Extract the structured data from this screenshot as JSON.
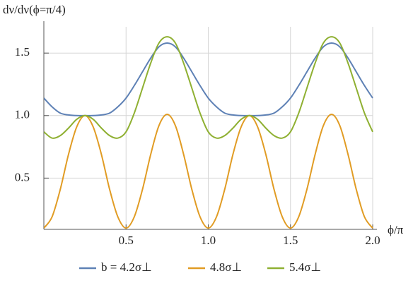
{
  "chart_data": {
    "type": "line",
    "y_label": "dν/dν(ϕ=π/4)",
    "x_label": "ϕ/π",
    "x": [
      0,
      0.05,
      0.1,
      0.15,
      0.2,
      0.25,
      0.3,
      0.35,
      0.4,
      0.45,
      0.5,
      0.55,
      0.6,
      0.65,
      0.7,
      0.75,
      0.8,
      0.85,
      0.9,
      0.95,
      1,
      1.05,
      1.1,
      1.15,
      1.2,
      1.25,
      1.3,
      1.35,
      1.4,
      1.45,
      1.5,
      1.55,
      1.6,
      1.65,
      1.7,
      1.75,
      1.8,
      1.85,
      1.9,
      1.95,
      2
    ],
    "series": [
      {
        "name": "b = 4.2σ⊥",
        "color": "#5e81b5",
        "values": [
          1.14,
          1.07,
          1.02,
          1.005,
          1.0,
          1.0,
          1.0,
          1.005,
          1.02,
          1.07,
          1.14,
          1.24,
          1.35,
          1.46,
          1.55,
          1.58,
          1.55,
          1.46,
          1.35,
          1.24,
          1.14,
          1.07,
          1.02,
          1.005,
          1.0,
          1.0,
          1.0,
          1.005,
          1.02,
          1.07,
          1.14,
          1.24,
          1.35,
          1.46,
          1.55,
          1.58,
          1.55,
          1.46,
          1.35,
          1.24,
          1.14
        ]
      },
      {
        "name": "4.8σ⊥",
        "color": "#e19c24",
        "values": [
          0.1,
          0.19,
          0.41,
          0.69,
          0.91,
          1.0,
          0.91,
          0.69,
          0.41,
          0.19,
          0.1,
          0.19,
          0.41,
          0.69,
          0.92,
          1.01,
          0.92,
          0.69,
          0.41,
          0.19,
          0.1,
          0.19,
          0.41,
          0.69,
          0.91,
          1.0,
          0.91,
          0.69,
          0.41,
          0.19,
          0.1,
          0.19,
          0.41,
          0.69,
          0.92,
          1.01,
          0.92,
          0.69,
          0.41,
          0.19,
          0.1
        ]
      },
      {
        "name": "5.4σ⊥",
        "color": "#8fb032",
        "values": [
          0.87,
          0.82,
          0.84,
          0.9,
          0.97,
          1.0,
          0.97,
          0.9,
          0.84,
          0.82,
          0.87,
          1.02,
          1.22,
          1.42,
          1.58,
          1.63,
          1.58,
          1.42,
          1.22,
          1.02,
          0.87,
          0.82,
          0.84,
          0.9,
          0.97,
          1.0,
          0.97,
          0.9,
          0.84,
          0.82,
          0.87,
          1.02,
          1.22,
          1.42,
          1.58,
          1.63,
          1.58,
          1.42,
          1.22,
          1.02,
          0.87
        ]
      }
    ],
    "xlim": [
      0,
      2
    ],
    "ylim": [
      0.09,
      1.71
    ],
    "xticks": [
      0.5,
      {
        "value": 1,
        "label": "1.0"
      },
      1.5,
      {
        "value": 2,
        "label": "2.0"
      }
    ],
    "yticks": [
      0.5,
      {
        "value": 1,
        "label": "1.0"
      },
      1.5
    ],
    "grid": true,
    "legend": "bottom"
  }
}
